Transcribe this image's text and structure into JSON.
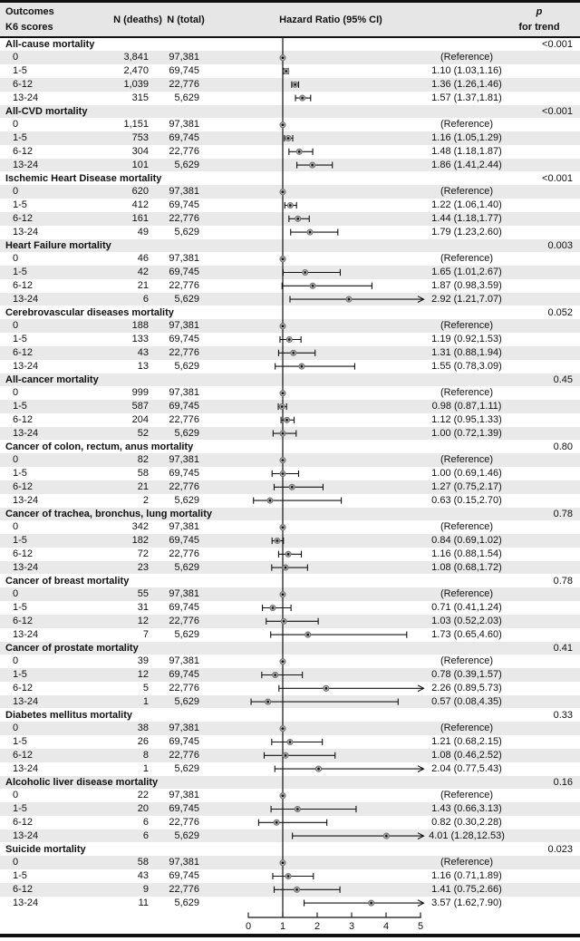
{
  "header": {
    "col_outcomes": "Outcomes",
    "col_k6": "K6 scores",
    "col_deaths": "N (deaths)",
    "col_total": "N (total)",
    "col_hr": "Hazard Ratio (95% CI)",
    "col_p_line1": "p",
    "col_p_line2": "for trend"
  },
  "colors": {
    "stripe": "#e9e9e9",
    "header_bg": "#e6e6e6",
    "line": "#111111",
    "marker_fill": "#a8a8a8",
    "marker_stroke": "#707070",
    "marker_center": "#111111"
  },
  "chart_data": {
    "type": "scatter",
    "subtype": "forest-plot",
    "x_axis": {
      "min": 0,
      "max": 5,
      "tick_labels": [
        "0",
        "1",
        "2",
        "3",
        "4",
        "5"
      ],
      "reference_line": 1
    },
    "legend": "arrow indicates upper CI limit beyond axis maximum",
    "groups": [
      {
        "name": "All-cause mortality",
        "p_for_trend": "<0.001",
        "rows": [
          {
            "score": "0",
            "deaths": "3,841",
            "total": "97,381",
            "hr": 1,
            "ci_low": null,
            "ci_high": null,
            "label": "(Reference)",
            "reference": true
          },
          {
            "score": "1-5",
            "deaths": "2,470",
            "total": "69,745",
            "hr": 1.1,
            "ci_low": 1.03,
            "ci_high": 1.16,
            "label": "1.10 (1.03,1.16)",
            "reference": false
          },
          {
            "score": "6-12",
            "deaths": "1,039",
            "total": "22,776",
            "hr": 1.36,
            "ci_low": 1.26,
            "ci_high": 1.46,
            "label": "1.36 (1.26,1.46)",
            "reference": false
          },
          {
            "score": "13-24",
            "deaths": "315",
            "total": "5,629",
            "hr": 1.57,
            "ci_low": 1.37,
            "ci_high": 1.81,
            "label": "1.57 (1.37,1.81)",
            "reference": false
          }
        ]
      },
      {
        "name": "All-CVD mortality",
        "p_for_trend": "<0.001",
        "rows": [
          {
            "score": "0",
            "deaths": "1,151",
            "total": "97,381",
            "hr": 1,
            "ci_low": null,
            "ci_high": null,
            "label": "(Reference)",
            "reference": true
          },
          {
            "score": "1-5",
            "deaths": "753",
            "total": "69,745",
            "hr": 1.16,
            "ci_low": 1.05,
            "ci_high": 1.29,
            "label": "1.16 (1.05,1.29)",
            "reference": false
          },
          {
            "score": "6-12",
            "deaths": "304",
            "total": "22,776",
            "hr": 1.48,
            "ci_low": 1.18,
            "ci_high": 1.87,
            "label": "1.48 (1.18,1.87)",
            "reference": false
          },
          {
            "score": "13-24",
            "deaths": "101",
            "total": "5,629",
            "hr": 1.86,
            "ci_low": 1.41,
            "ci_high": 2.44,
            "label": "1.86 (1.41,2.44)",
            "reference": false
          }
        ]
      },
      {
        "name": "Ischemic Heart Disease mortality",
        "p_for_trend": "<0.001",
        "rows": [
          {
            "score": "0",
            "deaths": "620",
            "total": "97,381",
            "hr": 1,
            "ci_low": null,
            "ci_high": null,
            "label": "(Reference)",
            "reference": true
          },
          {
            "score": "1-5",
            "deaths": "412",
            "total": "69,745",
            "hr": 1.22,
            "ci_low": 1.06,
            "ci_high": 1.4,
            "label": "1.22 (1.06,1.40)",
            "reference": false
          },
          {
            "score": "6-12",
            "deaths": "161",
            "total": "22,776",
            "hr": 1.44,
            "ci_low": 1.18,
            "ci_high": 1.77,
            "label": "1.44 (1.18,1.77)",
            "reference": false
          },
          {
            "score": "13-24",
            "deaths": "49",
            "total": "5,629",
            "hr": 1.79,
            "ci_low": 1.23,
            "ci_high": 2.6,
            "label": "1.79 (1.23,2.60)",
            "reference": false
          }
        ]
      },
      {
        "name": "Heart Failure mortality",
        "p_for_trend": "0.003",
        "rows": [
          {
            "score": "0",
            "deaths": "46",
            "total": "97,381",
            "hr": 1,
            "ci_low": null,
            "ci_high": null,
            "label": "(Reference)",
            "reference": true
          },
          {
            "score": "1-5",
            "deaths": "42",
            "total": "69,745",
            "hr": 1.65,
            "ci_low": 1.01,
            "ci_high": 2.67,
            "label": "1.65 (1.01,2.67)",
            "reference": false
          },
          {
            "score": "6-12",
            "deaths": "21",
            "total": "22,776",
            "hr": 1.87,
            "ci_low": 0.98,
            "ci_high": 3.59,
            "label": "1.87 (0.98,3.59)",
            "reference": false
          },
          {
            "score": "13-24",
            "deaths": "6",
            "total": "5,629",
            "hr": 2.92,
            "ci_low": 1.21,
            "ci_high": 7.07,
            "label": "2.92 (1.21,7.07)",
            "reference": false
          }
        ]
      },
      {
        "name": "Cerebrovascular diseases mortality",
        "p_for_trend": "0.052",
        "rows": [
          {
            "score": "0",
            "deaths": "188",
            "total": "97,381",
            "hr": 1,
            "ci_low": null,
            "ci_high": null,
            "label": "(Reference)",
            "reference": true
          },
          {
            "score": "1-5",
            "deaths": "133",
            "total": "69,745",
            "hr": 1.19,
            "ci_low": 0.92,
            "ci_high": 1.53,
            "label": "1.19 (0.92,1.53)",
            "reference": false
          },
          {
            "score": "6-12",
            "deaths": "43",
            "total": "22,776",
            "hr": 1.31,
            "ci_low": 0.88,
            "ci_high": 1.94,
            "label": "1.31 (0.88,1.94)",
            "reference": false
          },
          {
            "score": "13-24",
            "deaths": "13",
            "total": "5,629",
            "hr": 1.55,
            "ci_low": 0.78,
            "ci_high": 3.09,
            "label": "1.55 (0.78,3.09)",
            "reference": false
          }
        ]
      },
      {
        "name": "All-cancer mortality",
        "p_for_trend": "0.45",
        "rows": [
          {
            "score": "0",
            "deaths": "999",
            "total": "97,381",
            "hr": 1,
            "ci_low": null,
            "ci_high": null,
            "label": "(Reference)",
            "reference": true
          },
          {
            "score": "1-5",
            "deaths": "587",
            "total": "69,745",
            "hr": 0.98,
            "ci_low": 0.87,
            "ci_high": 1.11,
            "label": "0.98 (0.87,1.11)",
            "reference": false
          },
          {
            "score": "6-12",
            "deaths": "204",
            "total": "22,776",
            "hr": 1.12,
            "ci_low": 0.95,
            "ci_high": 1.33,
            "label": "1.12 (0.95,1.33)",
            "reference": false
          },
          {
            "score": "13-24",
            "deaths": "52",
            "total": "5,629",
            "hr": 1.0,
            "ci_low": 0.72,
            "ci_high": 1.39,
            "label": "1.00 (0.72,1.39)",
            "reference": false
          }
        ]
      },
      {
        "name": "Cancer of colon, rectum, anus mortality",
        "p_for_trend": "0.80",
        "rows": [
          {
            "score": "0",
            "deaths": "82",
            "total": "97,381",
            "hr": 1,
            "ci_low": null,
            "ci_high": null,
            "label": "(Reference)",
            "reference": true
          },
          {
            "score": "1-5",
            "deaths": "58",
            "total": "69,745",
            "hr": 1.0,
            "ci_low": 0.69,
            "ci_high": 1.46,
            "label": "1.00 (0.69,1.46)",
            "reference": false
          },
          {
            "score": "6-12",
            "deaths": "21",
            "total": "22,776",
            "hr": 1.27,
            "ci_low": 0.75,
            "ci_high": 2.17,
            "label": "1.27 (0.75,2.17)",
            "reference": false
          },
          {
            "score": "13-24",
            "deaths": "2",
            "total": "5,629",
            "hr": 0.63,
            "ci_low": 0.15,
            "ci_high": 2.7,
            "label": "0.63 (0.15,2.70)",
            "reference": false
          }
        ]
      },
      {
        "name": "Cancer of trachea, bronchus, lung mortality",
        "p_for_trend": "0.78",
        "rows": [
          {
            "score": "0",
            "deaths": "342",
            "total": "97,381",
            "hr": 1,
            "ci_low": null,
            "ci_high": null,
            "label": "(Reference)",
            "reference": true
          },
          {
            "score": "1-5",
            "deaths": "182",
            "total": "69,745",
            "hr": 0.84,
            "ci_low": 0.69,
            "ci_high": 1.02,
            "label": "0.84 (0.69,1.02)",
            "reference": false
          },
          {
            "score": "6-12",
            "deaths": "72",
            "total": "22,776",
            "hr": 1.16,
            "ci_low": 0.88,
            "ci_high": 1.54,
            "label": "1.16 (0.88,1.54)",
            "reference": false
          },
          {
            "score": "13-24",
            "deaths": "23",
            "total": "5,629",
            "hr": 1.08,
            "ci_low": 0.68,
            "ci_high": 1.72,
            "label": "1.08 (0.68,1.72)",
            "reference": false
          }
        ]
      },
      {
        "name": "Cancer of breast mortality",
        "p_for_trend": "0.78",
        "rows": [
          {
            "score": "0",
            "deaths": "55",
            "total": "97,381",
            "hr": 1,
            "ci_low": null,
            "ci_high": null,
            "label": "(Reference)",
            "reference": true
          },
          {
            "score": "1-5",
            "deaths": "31",
            "total": "69,745",
            "hr": 0.71,
            "ci_low": 0.41,
            "ci_high": 1.24,
            "label": "0.71 (0.41,1.24)",
            "reference": false
          },
          {
            "score": "6-12",
            "deaths": "12",
            "total": "22,776",
            "hr": 1.03,
            "ci_low": 0.52,
            "ci_high": 2.03,
            "label": "1.03 (0.52,2.03)",
            "reference": false
          },
          {
            "score": "13-24",
            "deaths": "7",
            "total": "5,629",
            "hr": 1.73,
            "ci_low": 0.65,
            "ci_high": 4.6,
            "label": "1.73 (0.65,4.60)",
            "reference": false
          }
        ]
      },
      {
        "name": "Cancer of prostate mortality",
        "p_for_trend": "0.41",
        "rows": [
          {
            "score": "0",
            "deaths": "39",
            "total": "97,381",
            "hr": 1,
            "ci_low": null,
            "ci_high": null,
            "label": "(Reference)",
            "reference": true
          },
          {
            "score": "1-5",
            "deaths": "12",
            "total": "69,745",
            "hr": 0.78,
            "ci_low": 0.39,
            "ci_high": 1.57,
            "label": "0.78 (0.39,1.57)",
            "reference": false
          },
          {
            "score": "6-12",
            "deaths": "5",
            "total": "22,776",
            "hr": 2.26,
            "ci_low": 0.89,
            "ci_high": 5.73,
            "label": "2.26 (0.89,5.73)",
            "reference": false
          },
          {
            "score": "13-24",
            "deaths": "1",
            "total": "5,629",
            "hr": 0.57,
            "ci_low": 0.08,
            "ci_high": 4.35,
            "label": "0.57 (0.08,4.35)",
            "reference": false
          }
        ]
      },
      {
        "name": "Diabetes mellitus mortality",
        "p_for_trend": "0.33",
        "rows": [
          {
            "score": "0",
            "deaths": "38",
            "total": "97,381",
            "hr": 1,
            "ci_low": null,
            "ci_high": null,
            "label": "(Reference)",
            "reference": true
          },
          {
            "score": "1-5",
            "deaths": "26",
            "total": "69,745",
            "hr": 1.21,
            "ci_low": 0.68,
            "ci_high": 2.15,
            "label": "1.21 (0.68,2.15)",
            "reference": false
          },
          {
            "score": "6-12",
            "deaths": "8",
            "total": "22,776",
            "hr": 1.08,
            "ci_low": 0.46,
            "ci_high": 2.52,
            "label": "1.08 (0.46,2.52)",
            "reference": false
          },
          {
            "score": "13-24",
            "deaths": "1",
            "total": "5,629",
            "hr": 2.04,
            "ci_low": 0.77,
            "ci_high": 5.43,
            "label": "2.04 (0.77,5.43)",
            "reference": false
          }
        ]
      },
      {
        "name": "Alcoholic liver disease mortality",
        "p_for_trend": "0.16",
        "rows": [
          {
            "score": "0",
            "deaths": "22",
            "total": "97,381",
            "hr": 1,
            "ci_low": null,
            "ci_high": null,
            "label": "(Reference)",
            "reference": true
          },
          {
            "score": "1-5",
            "deaths": "20",
            "total": "69,745",
            "hr": 1.43,
            "ci_low": 0.66,
            "ci_high": 3.13,
            "label": "1.43 (0.66,3.13)",
            "reference": false
          },
          {
            "score": "6-12",
            "deaths": "6",
            "total": "22,776",
            "hr": 0.82,
            "ci_low": 0.3,
            "ci_high": 2.28,
            "label": "0.82 (0.30,2.28)",
            "reference": false
          },
          {
            "score": "13-24",
            "deaths": "6",
            "total": "5,629",
            "hr": 4.01,
            "ci_low": 1.28,
            "ci_high": 12.53,
            "label": "4.01 (1.28,12.53)",
            "reference": false
          }
        ]
      },
      {
        "name": "Suicide mortality",
        "p_for_trend": "0.023",
        "rows": [
          {
            "score": "0",
            "deaths": "58",
            "total": "97,381",
            "hr": 1,
            "ci_low": null,
            "ci_high": null,
            "label": "(Reference)",
            "reference": true
          },
          {
            "score": "1-5",
            "deaths": "43",
            "total": "69,745",
            "hr": 1.16,
            "ci_low": 0.71,
            "ci_high": 1.89,
            "label": "1.16 (0.71,1.89)",
            "reference": false
          },
          {
            "score": "6-12",
            "deaths": "9",
            "total": "22,776",
            "hr": 1.41,
            "ci_low": 0.75,
            "ci_high": 2.66,
            "label": "1.41 (0.75,2.66)",
            "reference": false
          },
          {
            "score": "13-24",
            "deaths": "11",
            "total": "5,629",
            "hr": 3.57,
            "ci_low": 1.62,
            "ci_high": 7.9,
            "label": "3.57 (1.62,7.90)",
            "reference": false
          }
        ]
      }
    ]
  }
}
